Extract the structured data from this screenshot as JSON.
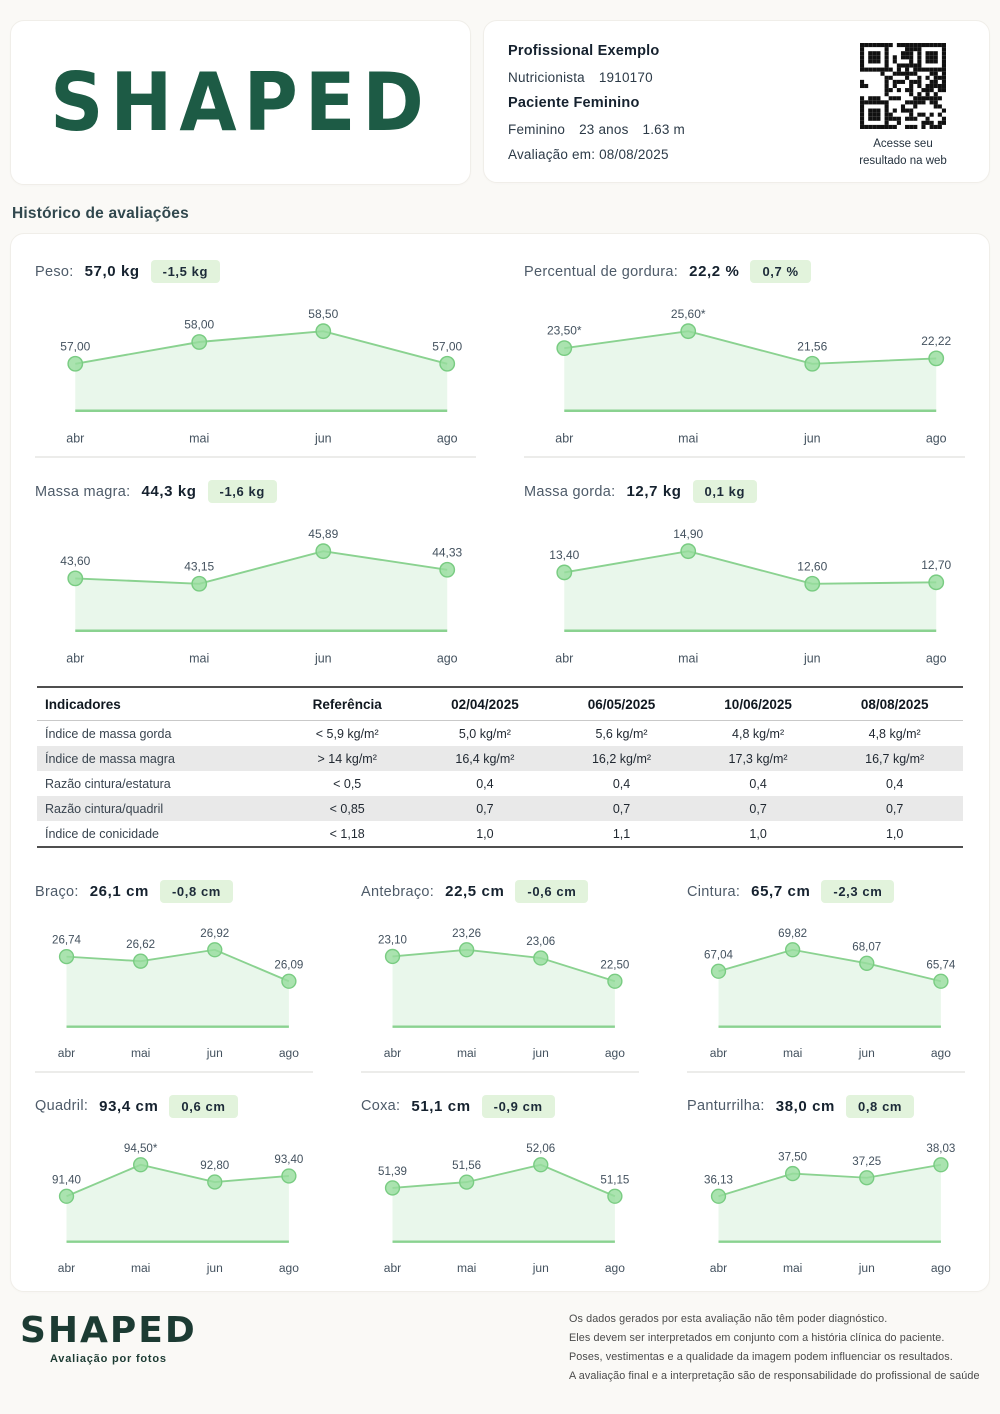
{
  "header": {
    "logo_text": "SHAPED",
    "professional_name": "Profissional Exemplo",
    "professional_role": "Nutricionista",
    "professional_id": "1910170",
    "patient_label": "Paciente Feminino",
    "patient_sex": "Feminino",
    "patient_age": "23 anos",
    "patient_height": "1.63 m",
    "evaluation_date_label": "Avaliação em: 08/08/2025",
    "qr_caption_line1": "Acesse seu",
    "qr_caption_line2": "resultado na web"
  },
  "section_title": "Histórico de avaliações",
  "chart_data": [
    {
      "type": "area",
      "id": "peso",
      "title": "Peso:",
      "current": "57,0 kg",
      "delta": "-1,5 kg",
      "categories": [
        "abr",
        "mai",
        "jun",
        "ago"
      ],
      "values": [
        57.0,
        58.0,
        58.5,
        57.0
      ],
      "labels": [
        "57,00",
        "58,00",
        "58,50",
        "57,00"
      ]
    },
    {
      "type": "area",
      "id": "percentual-gordura",
      "title": "Percentual de gordura:",
      "current": "22,2 %",
      "delta": "0,7 %",
      "categories": [
        "abr",
        "mai",
        "jun",
        "ago"
      ],
      "values": [
        23.5,
        25.6,
        21.56,
        22.22
      ],
      "labels": [
        "23,50*",
        "25,60*",
        "21,56",
        "22,22"
      ]
    },
    {
      "type": "area",
      "id": "massa-magra",
      "title": "Massa magra:",
      "current": "44,3 kg",
      "delta": "-1,6 kg",
      "categories": [
        "abr",
        "mai",
        "jun",
        "ago"
      ],
      "values": [
        43.6,
        43.15,
        45.89,
        44.33
      ],
      "labels": [
        "43,60",
        "43,15",
        "45,89",
        "44,33"
      ]
    },
    {
      "type": "area",
      "id": "massa-gorda",
      "title": "Massa gorda:",
      "current": "12,7 kg",
      "delta": "0,1 kg",
      "categories": [
        "abr",
        "mai",
        "jun",
        "ago"
      ],
      "values": [
        13.4,
        14.9,
        12.6,
        12.7
      ],
      "labels": [
        "13,40",
        "14,90",
        "12,60",
        "12,70"
      ]
    },
    {
      "type": "area",
      "id": "braco",
      "title": "Braço:",
      "current": "26,1 cm",
      "delta": "-0,8 cm",
      "categories": [
        "abr",
        "mai",
        "jun",
        "ago"
      ],
      "values": [
        26.74,
        26.62,
        26.92,
        26.09
      ],
      "labels": [
        "26,74",
        "26,62",
        "26,92",
        "26,09"
      ]
    },
    {
      "type": "area",
      "id": "antebraco",
      "title": "Antebraço:",
      "current": "22,5 cm",
      "delta": "-0,6 cm",
      "categories": [
        "abr",
        "mai",
        "jun",
        "ago"
      ],
      "values": [
        23.1,
        23.26,
        23.06,
        22.5
      ],
      "labels": [
        "23,10",
        "23,26",
        "23,06",
        "22,50"
      ]
    },
    {
      "type": "area",
      "id": "cintura",
      "title": "Cintura:",
      "current": "65,7 cm",
      "delta": "-2,3 cm",
      "categories": [
        "abr",
        "mai",
        "jun",
        "ago"
      ],
      "values": [
        67.04,
        69.82,
        68.07,
        65.74
      ],
      "labels": [
        "67,04",
        "69,82",
        "68,07",
        "65,74"
      ]
    },
    {
      "type": "area",
      "id": "quadril",
      "title": "Quadril:",
      "current": "93,4 cm",
      "delta": "0,6 cm",
      "categories": [
        "abr",
        "mai",
        "jun",
        "ago"
      ],
      "values": [
        91.4,
        94.5,
        92.8,
        93.4
      ],
      "labels": [
        "91,40",
        "94,50*",
        "92,80",
        "93,40"
      ]
    },
    {
      "type": "area",
      "id": "coxa",
      "title": "Coxa:",
      "current": "51,1 cm",
      "delta": "-0,9 cm",
      "categories": [
        "abr",
        "mai",
        "jun",
        "ago"
      ],
      "values": [
        51.39,
        51.56,
        52.06,
        51.15
      ],
      "labels": [
        "51,39",
        "51,56",
        "52,06",
        "51,15"
      ]
    },
    {
      "type": "area",
      "id": "panturrilha",
      "title": "Panturrilha:",
      "current": "38,0 cm",
      "delta": "0,8 cm",
      "categories": [
        "abr",
        "mai",
        "jun",
        "ago"
      ],
      "values": [
        36.13,
        37.5,
        37.25,
        38.03
      ],
      "labels": [
        "36,13",
        "37,50",
        "37,25",
        "38,03"
      ]
    }
  ],
  "table": {
    "headers": [
      "Indicadores",
      "Referência",
      "02/04/2025",
      "06/05/2025",
      "10/06/2025",
      "08/08/2025"
    ],
    "rows": [
      [
        "Índice de massa gorda",
        "< 5,9 kg/m²",
        "5,0 kg/m²",
        "5,6 kg/m²",
        "4,8 kg/m²",
        "4,8 kg/m²"
      ],
      [
        "Índice de massa magra",
        "> 14 kg/m²",
        "16,4 kg/m²",
        "16,2 kg/m²",
        "17,3 kg/m²",
        "16,7 kg/m²"
      ],
      [
        "Razão cintura/estatura",
        "< 0,5",
        "0,4",
        "0,4",
        "0,4",
        "0,4"
      ],
      [
        "Razão cintura/quadril",
        "< 0,85",
        "0,7",
        "0,7",
        "0,7",
        "0,7"
      ],
      [
        "Índice de conicidade",
        "< 1,18",
        "1,0",
        "1,1",
        "1,0",
        "1,0"
      ]
    ]
  },
  "footer": {
    "logo_text": "SHAPED",
    "logo_subtitle": "Avaliação por fotos",
    "disclaimer": [
      "Os dados gerados por esta avaliação não têm poder diagnóstico.",
      "Eles devem ser interpretados em conjunto com a história clínica do paciente.",
      "Poses, vestimentas e a qualidade da imagem podem influenciar os resultados.",
      "A avaliação final e a interpretação são de responsabilidade do profissional de saúde"
    ]
  },
  "colors": {
    "brand_green": "#1d5b45",
    "chart_line": "#8ad290",
    "chart_dot_fill": "#97dd9d",
    "chart_area": "#86d48e",
    "badge_background": "#e2f3dc",
    "heading_slate": "#31484e",
    "table_band": "#e9e9e9",
    "page_background": "#faf9f6"
  }
}
